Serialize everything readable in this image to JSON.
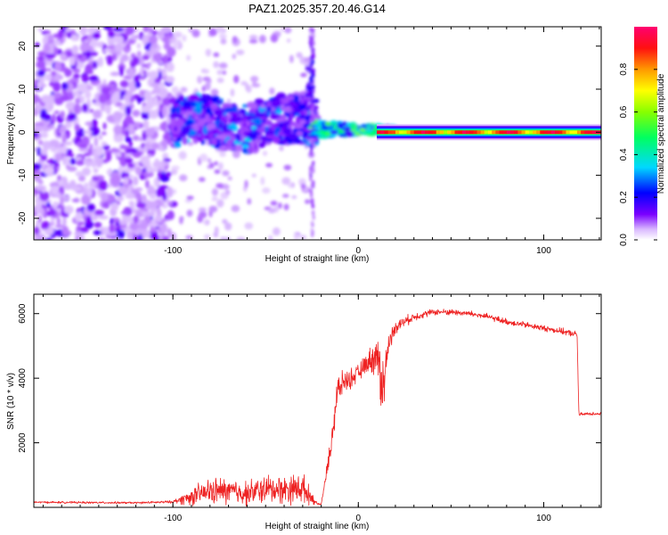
{
  "title": "PAZ1.2025.357.20.46.G14",
  "chart_data": [
    {
      "type": "heatmap",
      "xlabel": "Height of straight line (km)",
      "ylabel": "Frequency (Hz)",
      "xlim": [
        -175,
        131
      ],
      "ylim": [
        -25,
        24.5
      ],
      "x_ticks": [
        -100,
        0,
        100
      ],
      "x_tick_labels": [
        "-100",
        "0",
        "100"
      ],
      "y_ticks": [
        -20,
        -10,
        0,
        10,
        20
      ],
      "y_tick_labels": [
        "-20",
        "-10",
        "0",
        "10",
        "20"
      ],
      "colorbar": {
        "label": "Normalized spectral amplitude",
        "range": [
          0,
          1
        ],
        "ticks": [
          0.0,
          0.2,
          0.4,
          0.6,
          0.8
        ],
        "tick_labels": [
          "0.0",
          "0.2",
          "0.4",
          "0.6",
          "0.8"
        ],
        "colors": [
          "#ffffff",
          "#d9b8ff",
          "#7a00ff",
          "#0000ff",
          "#00d8ff",
          "#00ff00",
          "#ffff00",
          "#ff8000",
          "#ff0000",
          "#ff0080"
        ]
      },
      "features": [
        {
          "region": "noise",
          "x_range": [
            -175,
            -100
          ],
          "freq_range": [
            -25,
            24
          ],
          "amplitude": 0.1
        },
        {
          "region": "spread signal",
          "x_range": [
            -100,
            -25
          ],
          "freq_range": [
            -6,
            8
          ],
          "amplitude": 0.25
        },
        {
          "region": "converging",
          "x_range": [
            -25,
            20
          ],
          "freq_range": [
            -2,
            5
          ],
          "amplitude": 0.55
        },
        {
          "region": "carrier",
          "x_range": [
            20,
            131
          ],
          "freq_center": 0,
          "amplitude": 0.9
        }
      ]
    },
    {
      "type": "line",
      "xlabel": "Height of straight line (km)",
      "ylabel": "SNR (10 * v/v)",
      "xlim": [
        -175,
        131
      ],
      "ylim": [
        0,
        6600
      ],
      "x_ticks": [
        -100,
        0,
        100
      ],
      "x_tick_labels": [
        "-100",
        "0",
        "100"
      ],
      "y_ticks": [
        2000,
        4000,
        6000
      ],
      "y_tick_labels": [
        "2000",
        "4000",
        "6000"
      ],
      "color": "#ee2222",
      "series": [
        {
          "name": "SNR",
          "x": [
            -175,
            -150,
            -120,
            -100,
            -90,
            -80,
            -70,
            -60,
            -50,
            -40,
            -30,
            -22,
            -20,
            -15,
            -12,
            -10,
            -8,
            -5,
            0,
            5,
            10,
            12,
            14,
            16,
            20,
            30,
            40,
            50,
            60,
            70,
            80,
            90,
            100,
            110,
            118,
            119,
            120,
            125,
            131
          ],
          "y": [
            160,
            150,
            140,
            170,
            330,
            500,
            500,
            440,
            560,
            560,
            600,
            100,
            100,
            1800,
            3300,
            3700,
            3900,
            3950,
            4150,
            4500,
            4700,
            4100,
            3800,
            5000,
            5600,
            5900,
            6050,
            6050,
            6000,
            5900,
            5750,
            5650,
            5550,
            5450,
            5350,
            2850,
            2880,
            2900,
            2900
          ],
          "noise": [
            30,
            30,
            30,
            40,
            260,
            380,
            400,
            360,
            420,
            420,
            450,
            20,
            20,
            300,
            800,
            400,
            300,
            300,
            250,
            300,
            600,
            1000,
            900,
            300,
            200,
            120,
            90,
            90,
            90,
            90,
            90,
            90,
            90,
            90,
            90,
            50,
            50,
            50,
            50
          ]
        }
      ]
    }
  ]
}
